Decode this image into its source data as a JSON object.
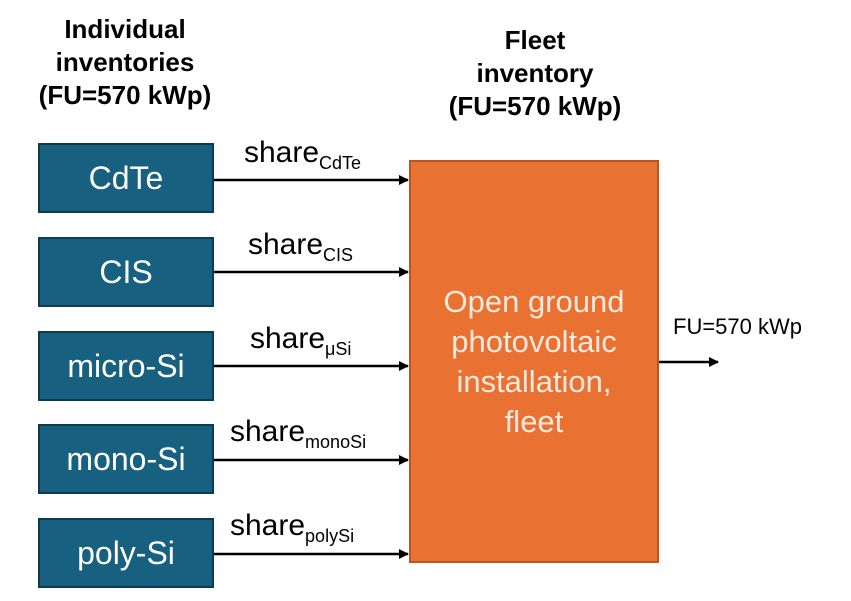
{
  "headings": {
    "individual": [
      "Individual",
      "inventories",
      "(FU=570 kWp)"
    ],
    "fleet": [
      "Fleet",
      "inventory",
      "(FU=570 kWp)"
    ]
  },
  "technologies": [
    {
      "label": "CdTe",
      "share_word": "share",
      "share_sub": "CdTe"
    },
    {
      "label": "CIS",
      "share_word": "share",
      "share_sub": "CIS"
    },
    {
      "label": "micro-Si",
      "share_word": "share",
      "share_sub": "μSi"
    },
    {
      "label": "mono-Si",
      "share_word": "share",
      "share_sub": "monoSi"
    },
    {
      "label": "poly-Si",
      "share_word": "share",
      "share_sub": "polySi"
    }
  ],
  "fleet_box": {
    "lines": [
      "Open ground",
      "photovoltaic",
      "installation,",
      "fleet"
    ]
  },
  "output": {
    "label": "FU=570 kWp"
  },
  "colors": {
    "tech_box_fill": "#17607f",
    "fleet_box_fill": "#e97132",
    "text": "#000000"
  }
}
